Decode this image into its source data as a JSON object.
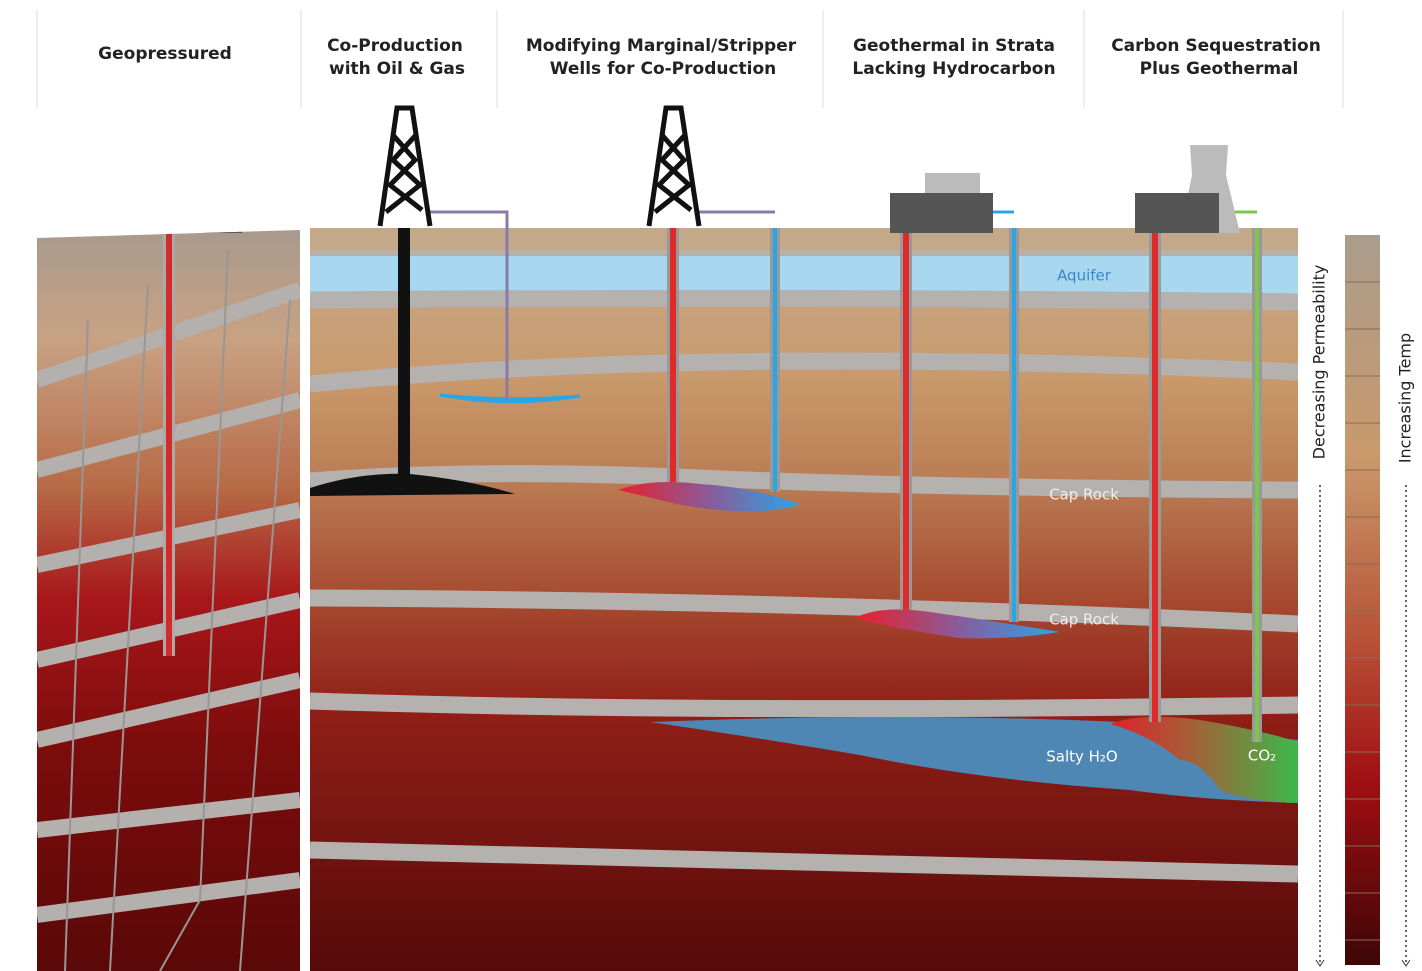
{
  "columns": [
    {
      "lines": [
        "Geopressured"
      ]
    },
    {
      "lines": [
        "Co-Production",
        "with Oil & Gas"
      ]
    },
    {
      "lines": [
        "Modifying Marginal/Stripper",
        "Wells for Co-Production"
      ]
    },
    {
      "lines": [
        "Geothermal in Strata",
        "Lacking Hydrocarbon"
      ]
    },
    {
      "lines": [
        "Carbon Sequestration",
        "Plus Geothermal"
      ]
    }
  ],
  "labels": {
    "aquifer": "Aquifer",
    "cap_rock_upper": "Cap Rock",
    "cap_rock_lower": "Cap Rock",
    "salty_water": "Salty H₂O",
    "co2": "CO₂"
  },
  "side_labels": {
    "permeability": "Decreasing Permeability",
    "temperature": "Increasing Temp"
  }
}
